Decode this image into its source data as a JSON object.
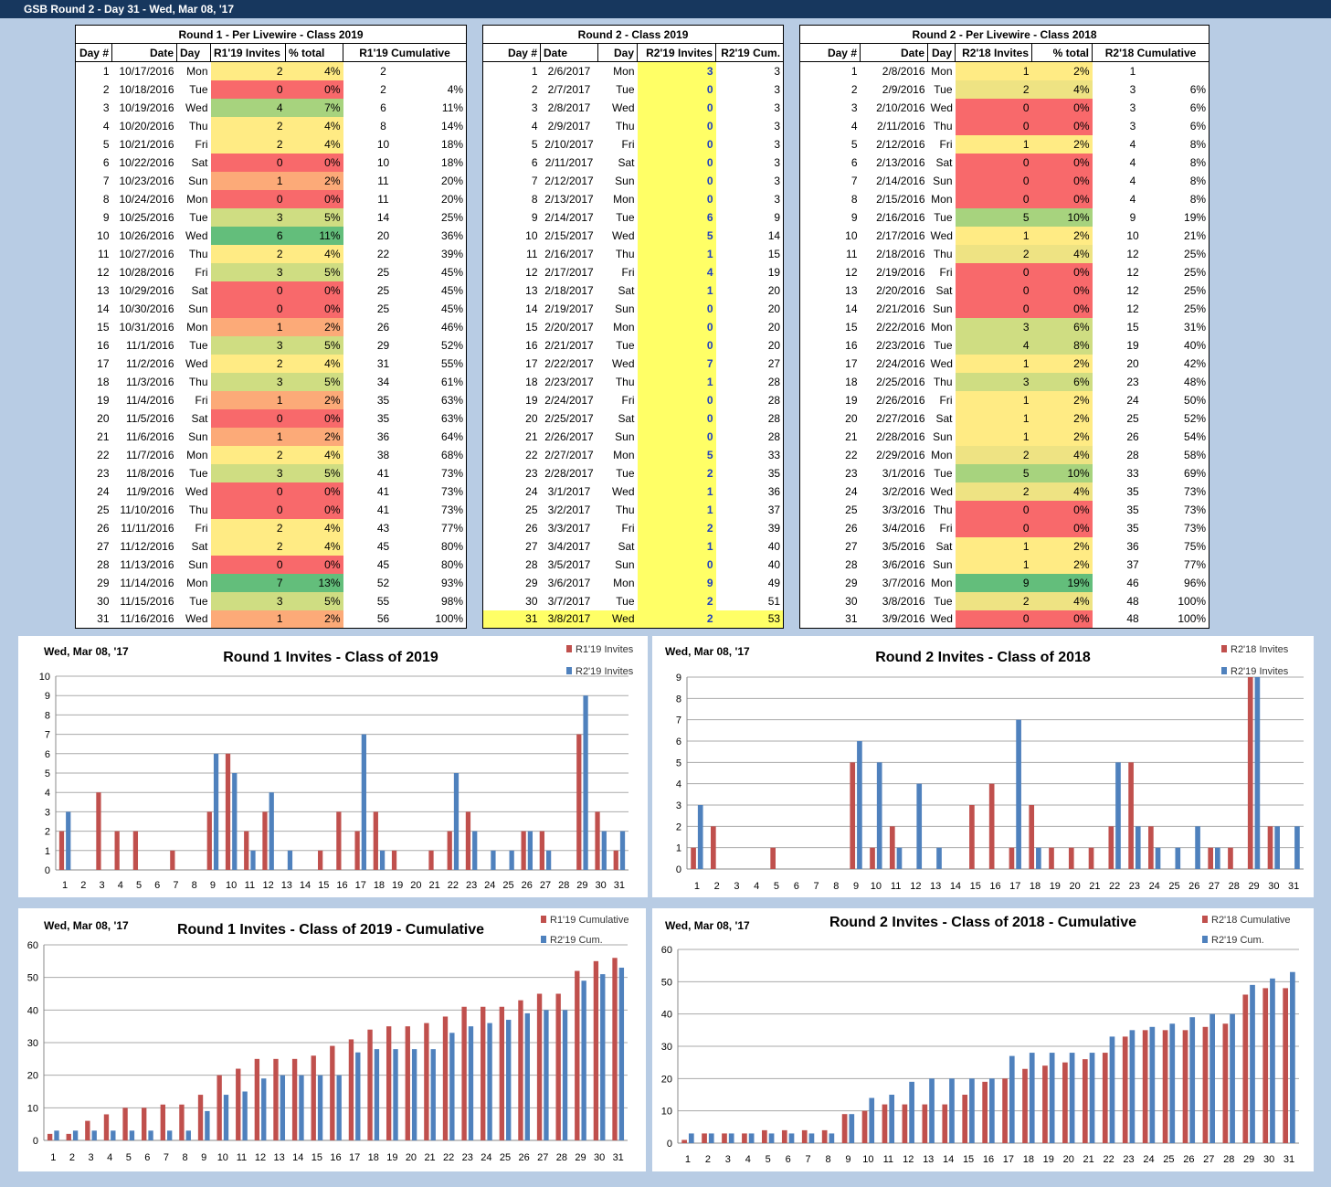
{
  "window_title": "GSB Round 2 - Day 31 - Wed, Mar 08, '17",
  "colors": {
    "red_series": "#c0504d",
    "blue_series": "#4f81bd",
    "highlight_yellow": "#ffff66",
    "header_bar": "#17375e"
  },
  "table1": {
    "caption": "Round 1 - Per Livewire - Class 2019",
    "headers": [
      "Day #",
      "Date",
      "Day",
      "R1'19 Invites",
      "% total",
      "R1'19 Cumulative"
    ],
    "rows": [
      [
        "1",
        "10/17/2016",
        "Mon",
        "2",
        "4%",
        "2",
        ""
      ],
      [
        "2",
        "10/18/2016",
        "Tue",
        "0",
        "0%",
        "2",
        "4%"
      ],
      [
        "3",
        "10/19/2016",
        "Wed",
        "4",
        "7%",
        "6",
        "11%"
      ],
      [
        "4",
        "10/20/2016",
        "Thu",
        "2",
        "4%",
        "8",
        "14%"
      ],
      [
        "5",
        "10/21/2016",
        "Fri",
        "2",
        "4%",
        "10",
        "18%"
      ],
      [
        "6",
        "10/22/2016",
        "Sat",
        "0",
        "0%",
        "10",
        "18%"
      ],
      [
        "7",
        "10/23/2016",
        "Sun",
        "1",
        "2%",
        "11",
        "20%"
      ],
      [
        "8",
        "10/24/2016",
        "Mon",
        "0",
        "0%",
        "11",
        "20%"
      ],
      [
        "9",
        "10/25/2016",
        "Tue",
        "3",
        "5%",
        "14",
        "25%"
      ],
      [
        "10",
        "10/26/2016",
        "Wed",
        "6",
        "11%",
        "20",
        "36%"
      ],
      [
        "11",
        "10/27/2016",
        "Thu",
        "2",
        "4%",
        "22",
        "39%"
      ],
      [
        "12",
        "10/28/2016",
        "Fri",
        "3",
        "5%",
        "25",
        "45%"
      ],
      [
        "13",
        "10/29/2016",
        "Sat",
        "0",
        "0%",
        "25",
        "45%"
      ],
      [
        "14",
        "10/30/2016",
        "Sun",
        "0",
        "0%",
        "25",
        "45%"
      ],
      [
        "15",
        "10/31/2016",
        "Mon",
        "1",
        "2%",
        "26",
        "46%"
      ],
      [
        "16",
        "11/1/2016",
        "Tue",
        "3",
        "5%",
        "29",
        "52%"
      ],
      [
        "17",
        "11/2/2016",
        "Wed",
        "2",
        "4%",
        "31",
        "55%"
      ],
      [
        "18",
        "11/3/2016",
        "Thu",
        "3",
        "5%",
        "34",
        "61%"
      ],
      [
        "19",
        "11/4/2016",
        "Fri",
        "1",
        "2%",
        "35",
        "63%"
      ],
      [
        "20",
        "11/5/2016",
        "Sat",
        "0",
        "0%",
        "35",
        "63%"
      ],
      [
        "21",
        "11/6/2016",
        "Sun",
        "1",
        "2%",
        "36",
        "64%"
      ],
      [
        "22",
        "11/7/2016",
        "Mon",
        "2",
        "4%",
        "38",
        "68%"
      ],
      [
        "23",
        "11/8/2016",
        "Tue",
        "3",
        "5%",
        "41",
        "73%"
      ],
      [
        "24",
        "11/9/2016",
        "Wed",
        "0",
        "0%",
        "41",
        "73%"
      ],
      [
        "25",
        "11/10/2016",
        "Thu",
        "0",
        "0%",
        "41",
        "73%"
      ],
      [
        "26",
        "11/11/2016",
        "Fri",
        "2",
        "4%",
        "43",
        "77%"
      ],
      [
        "27",
        "11/12/2016",
        "Sat",
        "2",
        "4%",
        "45",
        "80%"
      ],
      [
        "28",
        "11/13/2016",
        "Sun",
        "0",
        "0%",
        "45",
        "80%"
      ],
      [
        "29",
        "11/14/2016",
        "Mon",
        "7",
        "13%",
        "52",
        "93%"
      ],
      [
        "30",
        "11/15/2016",
        "Tue",
        "3",
        "5%",
        "55",
        "98%"
      ],
      [
        "31",
        "11/16/2016",
        "Wed",
        "1",
        "2%",
        "56",
        "100%"
      ]
    ]
  },
  "table2": {
    "caption": "Round 2 - Class 2019",
    "headers": [
      "Day #",
      "Date",
      "Day",
      "R2'19 Invites",
      "R2'19 Cum."
    ],
    "rows": [
      [
        "1",
        "2/6/2017",
        "Mon",
        "3",
        "3"
      ],
      [
        "2",
        "2/7/2017",
        "Tue",
        "0",
        "3"
      ],
      [
        "3",
        "2/8/2017",
        "Wed",
        "0",
        "3"
      ],
      [
        "4",
        "2/9/2017",
        "Thu",
        "0",
        "3"
      ],
      [
        "5",
        "2/10/2017",
        "Fri",
        "0",
        "3"
      ],
      [
        "6",
        "2/11/2017",
        "Sat",
        "0",
        "3"
      ],
      [
        "7",
        "2/12/2017",
        "Sun",
        "0",
        "3"
      ],
      [
        "8",
        "2/13/2017",
        "Mon",
        "0",
        "3"
      ],
      [
        "9",
        "2/14/2017",
        "Tue",
        "6",
        "9"
      ],
      [
        "10",
        "2/15/2017",
        "Wed",
        "5",
        "14"
      ],
      [
        "11",
        "2/16/2017",
        "Thu",
        "1",
        "15"
      ],
      [
        "12",
        "2/17/2017",
        "Fri",
        "4",
        "19"
      ],
      [
        "13",
        "2/18/2017",
        "Sat",
        "1",
        "20"
      ],
      [
        "14",
        "2/19/2017",
        "Sun",
        "0",
        "20"
      ],
      [
        "15",
        "2/20/2017",
        "Mon",
        "0",
        "20"
      ],
      [
        "16",
        "2/21/2017",
        "Tue",
        "0",
        "20"
      ],
      [
        "17",
        "2/22/2017",
        "Wed",
        "7",
        "27"
      ],
      [
        "18",
        "2/23/2017",
        "Thu",
        "1",
        "28"
      ],
      [
        "19",
        "2/24/2017",
        "Fri",
        "0",
        "28"
      ],
      [
        "20",
        "2/25/2017",
        "Sat",
        "0",
        "28"
      ],
      [
        "21",
        "2/26/2017",
        "Sun",
        "0",
        "28"
      ],
      [
        "22",
        "2/27/2017",
        "Mon",
        "5",
        "33"
      ],
      [
        "23",
        "2/28/2017",
        "Tue",
        "2",
        "35"
      ],
      [
        "24",
        "3/1/2017",
        "Wed",
        "1",
        "36"
      ],
      [
        "25",
        "3/2/2017",
        "Thu",
        "1",
        "37"
      ],
      [
        "26",
        "3/3/2017",
        "Fri",
        "2",
        "39"
      ],
      [
        "27",
        "3/4/2017",
        "Sat",
        "1",
        "40"
      ],
      [
        "28",
        "3/5/2017",
        "Sun",
        "0",
        "40"
      ],
      [
        "29",
        "3/6/2017",
        "Mon",
        "9",
        "49"
      ],
      [
        "30",
        "3/7/2017",
        "Tue",
        "2",
        "51"
      ],
      [
        "31",
        "3/8/2017",
        "Wed",
        "2",
        "53"
      ]
    ]
  },
  "table3": {
    "caption": "Round 2 - Per Livewire - Class 2018",
    "headers": [
      "Day #",
      "Date",
      "Day",
      "R2'18 Invites",
      "% total",
      "R2'18 Cumulative"
    ],
    "rows": [
      [
        "1",
        "2/8/2016",
        "Mon",
        "1",
        "2%",
        "1",
        ""
      ],
      [
        "2",
        "2/9/2016",
        "Tue",
        "2",
        "4%",
        "3",
        "6%"
      ],
      [
        "3",
        "2/10/2016",
        "Wed",
        "0",
        "0%",
        "3",
        "6%"
      ],
      [
        "4",
        "2/11/2016",
        "Thu",
        "0",
        "0%",
        "3",
        "6%"
      ],
      [
        "5",
        "2/12/2016",
        "Fri",
        "1",
        "2%",
        "4",
        "8%"
      ],
      [
        "6",
        "2/13/2016",
        "Sat",
        "0",
        "0%",
        "4",
        "8%"
      ],
      [
        "7",
        "2/14/2016",
        "Sun",
        "0",
        "0%",
        "4",
        "8%"
      ],
      [
        "8",
        "2/15/2016",
        "Mon",
        "0",
        "0%",
        "4",
        "8%"
      ],
      [
        "9",
        "2/16/2016",
        "Tue",
        "5",
        "10%",
        "9",
        "19%"
      ],
      [
        "10",
        "2/17/2016",
        "Wed",
        "1",
        "2%",
        "10",
        "21%"
      ],
      [
        "11",
        "2/18/2016",
        "Thu",
        "2",
        "4%",
        "12",
        "25%"
      ],
      [
        "12",
        "2/19/2016",
        "Fri",
        "0",
        "0%",
        "12",
        "25%"
      ],
      [
        "13",
        "2/20/2016",
        "Sat",
        "0",
        "0%",
        "12",
        "25%"
      ],
      [
        "14",
        "2/21/2016",
        "Sun",
        "0",
        "0%",
        "12",
        "25%"
      ],
      [
        "15",
        "2/22/2016",
        "Mon",
        "3",
        "6%",
        "15",
        "31%"
      ],
      [
        "16",
        "2/23/2016",
        "Tue",
        "4",
        "8%",
        "19",
        "40%"
      ],
      [
        "17",
        "2/24/2016",
        "Wed",
        "1",
        "2%",
        "20",
        "42%"
      ],
      [
        "18",
        "2/25/2016",
        "Thu",
        "3",
        "6%",
        "23",
        "48%"
      ],
      [
        "19",
        "2/26/2016",
        "Fri",
        "1",
        "2%",
        "24",
        "50%"
      ],
      [
        "20",
        "2/27/2016",
        "Sat",
        "1",
        "2%",
        "25",
        "52%"
      ],
      [
        "21",
        "2/28/2016",
        "Sun",
        "1",
        "2%",
        "26",
        "54%"
      ],
      [
        "22",
        "2/29/2016",
        "Mon",
        "2",
        "4%",
        "28",
        "58%"
      ],
      [
        "23",
        "3/1/2016",
        "Tue",
        "5",
        "10%",
        "33",
        "69%"
      ],
      [
        "24",
        "3/2/2016",
        "Wed",
        "2",
        "4%",
        "35",
        "73%"
      ],
      [
        "25",
        "3/3/2016",
        "Thu",
        "0",
        "0%",
        "35",
        "73%"
      ],
      [
        "26",
        "3/4/2016",
        "Fri",
        "0",
        "0%",
        "35",
        "73%"
      ],
      [
        "27",
        "3/5/2016",
        "Sat",
        "1",
        "2%",
        "36",
        "75%"
      ],
      [
        "28",
        "3/6/2016",
        "Sun",
        "1",
        "2%",
        "37",
        "77%"
      ],
      [
        "29",
        "3/7/2016",
        "Mon",
        "9",
        "19%",
        "46",
        "96%"
      ],
      [
        "30",
        "3/8/2016",
        "Tue",
        "2",
        "4%",
        "48",
        "100%"
      ],
      [
        "31",
        "3/9/2016",
        "Wed",
        "0",
        "0%",
        "48",
        "100%"
      ]
    ]
  },
  "chart_data": [
    {
      "type": "bar",
      "date_label": "Wed, Mar 08, '17",
      "title": "Round 1 Invites - Class of 2019",
      "categories": [
        "1",
        "2",
        "3",
        "4",
        "5",
        "6",
        "7",
        "8",
        "9",
        "10",
        "11",
        "12",
        "13",
        "14",
        "15",
        "16",
        "17",
        "18",
        "19",
        "20",
        "21",
        "22",
        "23",
        "24",
        "25",
        "26",
        "27",
        "28",
        "29",
        "30",
        "31"
      ],
      "ylim": [
        0,
        10
      ],
      "yticks": [
        0,
        1,
        2,
        3,
        4,
        5,
        6,
        7,
        8,
        9,
        10
      ],
      "grid": true,
      "legend": "top-right",
      "series": [
        {
          "name": "R1'19 Invites",
          "color": "#c0504d",
          "values": [
            2,
            0,
            4,
            2,
            2,
            0,
            1,
            0,
            3,
            6,
            2,
            3,
            0,
            0,
            1,
            3,
            2,
            3,
            1,
            0,
            1,
            2,
            3,
            0,
            0,
            2,
            2,
            0,
            7,
            3,
            1
          ]
        },
        {
          "name": "R2'19 Invites",
          "color": "#4f81bd",
          "values": [
            3,
            0,
            0,
            0,
            0,
            0,
            0,
            0,
            6,
            5,
            1,
            4,
            1,
            0,
            0,
            0,
            7,
            1,
            0,
            0,
            0,
            5,
            2,
            1,
            1,
            2,
            1,
            0,
            9,
            2,
            2
          ]
        }
      ]
    },
    {
      "type": "bar",
      "date_label": "Wed, Mar 08, '17",
      "title": "Round 2 Invites - Class of 2018",
      "categories": [
        "1",
        "2",
        "3",
        "4",
        "5",
        "6",
        "7",
        "8",
        "9",
        "10",
        "11",
        "12",
        "13",
        "14",
        "15",
        "16",
        "17",
        "18",
        "19",
        "20",
        "21",
        "22",
        "23",
        "24",
        "25",
        "26",
        "27",
        "28",
        "29",
        "30",
        "31"
      ],
      "ylim": [
        0,
        9
      ],
      "yticks": [
        0,
        1,
        2,
        3,
        4,
        5,
        6,
        7,
        8,
        9
      ],
      "grid": true,
      "legend": "top-right",
      "series": [
        {
          "name": "R2'18 Invites",
          "color": "#c0504d",
          "values": [
            1,
            2,
            0,
            0,
            1,
            0,
            0,
            0,
            5,
            1,
            2,
            0,
            0,
            0,
            3,
            4,
            1,
            3,
            1,
            1,
            1,
            2,
            5,
            2,
            0,
            0,
            1,
            1,
            9,
            2,
            0
          ]
        },
        {
          "name": "R2'19 Invites",
          "color": "#4f81bd",
          "values": [
            3,
            0,
            0,
            0,
            0,
            0,
            0,
            0,
            6,
            5,
            1,
            4,
            1,
            0,
            0,
            0,
            7,
            1,
            0,
            0,
            0,
            5,
            2,
            1,
            1,
            2,
            1,
            0,
            9,
            2,
            2
          ]
        }
      ]
    },
    {
      "type": "bar",
      "date_label": "Wed, Mar 08, '17",
      "title": "Round 1 Invites - Class of 2019 - Cumulative",
      "categories": [
        "1",
        "2",
        "3",
        "4",
        "5",
        "6",
        "7",
        "8",
        "9",
        "10",
        "11",
        "12",
        "13",
        "14",
        "15",
        "16",
        "17",
        "18",
        "19",
        "20",
        "21",
        "22",
        "23",
        "24",
        "25",
        "26",
        "27",
        "28",
        "29",
        "30",
        "31"
      ],
      "ylim": [
        0,
        60
      ],
      "yticks": [
        0,
        10,
        20,
        30,
        40,
        50,
        60
      ],
      "grid": true,
      "legend": "top-right",
      "series": [
        {
          "name": "R1'19 Cumulative",
          "color": "#c0504d",
          "values": [
            2,
            2,
            6,
            8,
            10,
            10,
            11,
            11,
            14,
            20,
            22,
            25,
            25,
            25,
            26,
            29,
            31,
            34,
            35,
            35,
            36,
            38,
            41,
            41,
            41,
            43,
            45,
            45,
            52,
            55,
            56
          ]
        },
        {
          "name": "R2'19 Cum.",
          "color": "#4f81bd",
          "values": [
            3,
            3,
            3,
            3,
            3,
            3,
            3,
            3,
            9,
            14,
            15,
            19,
            20,
            20,
            20,
            20,
            27,
            28,
            28,
            28,
            28,
            33,
            35,
            36,
            37,
            39,
            40,
            40,
            49,
            51,
            53
          ]
        }
      ]
    },
    {
      "type": "bar",
      "date_label": "Wed, Mar 08, '17",
      "title": "Round 2 Invites - Class of 2018 - Cumulative",
      "categories": [
        "1",
        "2",
        "3",
        "4",
        "5",
        "6",
        "7",
        "8",
        "9",
        "10",
        "11",
        "12",
        "13",
        "14",
        "15",
        "16",
        "17",
        "18",
        "19",
        "20",
        "21",
        "22",
        "23",
        "24",
        "25",
        "26",
        "27",
        "28",
        "29",
        "30",
        "31"
      ],
      "ylim": [
        0,
        60
      ],
      "yticks": [
        0,
        10,
        20,
        30,
        40,
        50,
        60
      ],
      "grid": true,
      "legend": "top-right",
      "series": [
        {
          "name": "R2'18 Cumulative",
          "color": "#c0504d",
          "values": [
            1,
            3,
            3,
            3,
            4,
            4,
            4,
            4,
            9,
            10,
            12,
            12,
            12,
            12,
            15,
            19,
            20,
            23,
            24,
            25,
            26,
            28,
            33,
            35,
            35,
            35,
            36,
            37,
            46,
            48,
            48
          ]
        },
        {
          "name": "R2'19 Cum.",
          "color": "#4f81bd",
          "values": [
            3,
            3,
            3,
            3,
            3,
            3,
            3,
            3,
            9,
            14,
            15,
            19,
            20,
            20,
            20,
            20,
            27,
            28,
            28,
            28,
            28,
            33,
            35,
            36,
            37,
            39,
            40,
            40,
            49,
            51,
            53
          ]
        }
      ]
    }
  ]
}
